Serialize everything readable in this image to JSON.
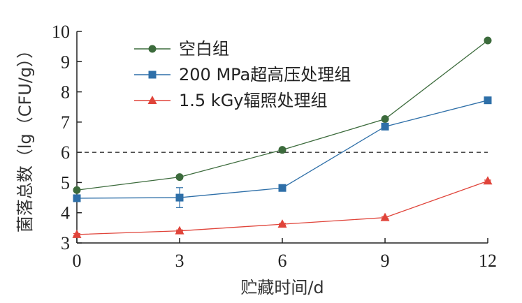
{
  "chart_data": {
    "type": "line",
    "title": "",
    "xlabel": "贮藏时间/d",
    "ylabel": "菌落总数（lg（CFU/g））",
    "x": [
      0,
      3,
      6,
      9,
      12
    ],
    "xlim": [
      0,
      12
    ],
    "ylim": [
      3,
      10
    ],
    "xticks": [
      "0",
      "3",
      "6",
      "9",
      "12"
    ],
    "yticks": [
      "3",
      "4",
      "5",
      "6",
      "7",
      "8",
      "9",
      "10"
    ],
    "grid": false,
    "legend_position": "top-left",
    "reference_line": {
      "y": 6,
      "style": "dashed"
    },
    "series": [
      {
        "name": "空白组",
        "color": "#3c6b3c",
        "marker": "circle",
        "values": [
          4.75,
          5.18,
          6.08,
          7.1,
          9.7
        ],
        "errors": [
          0.05,
          0.05,
          0.05,
          0.05,
          0.05
        ]
      },
      {
        "name": "200 MPa超高压处理组",
        "color": "#2e6fa8",
        "marker": "square",
        "values": [
          4.48,
          4.5,
          4.82,
          6.85,
          7.72
        ],
        "errors": [
          0.05,
          0.33,
          0.05,
          0.1,
          0.05
        ]
      },
      {
        "name": "1.5 kGy辐照处理组",
        "color": "#e0443a",
        "marker": "triangle",
        "values": [
          3.28,
          3.4,
          3.62,
          3.84,
          5.05
        ],
        "errors": [
          0.03,
          0.03,
          0.03,
          0.03,
          0.03
        ]
      }
    ]
  }
}
